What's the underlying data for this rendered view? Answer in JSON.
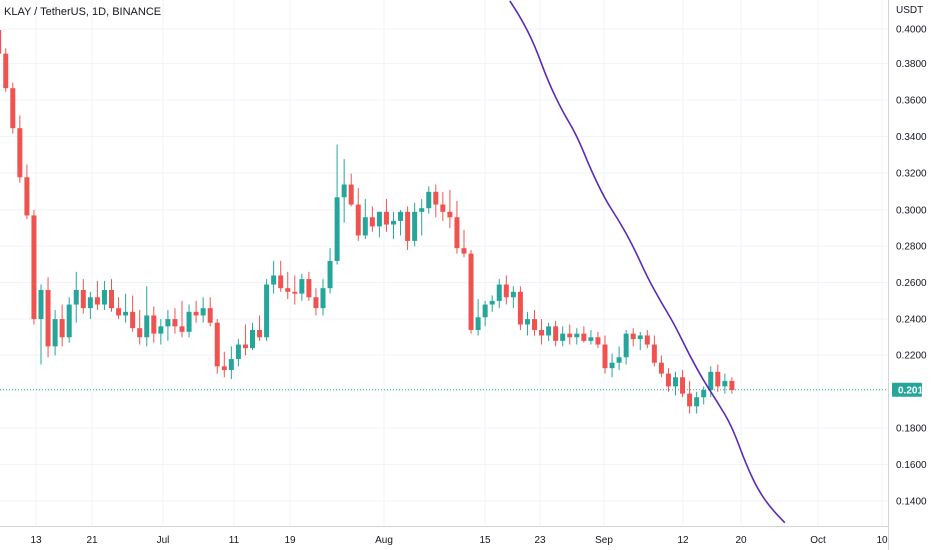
{
  "chart_data": {
    "type": "candlestick",
    "title": "KLAY / TetherUS, 1D, BINANCE",
    "y_unit": "USDT",
    "y_ticks": [
      "0.4000",
      "0.3800",
      "0.3600",
      "0.3400",
      "0.3200",
      "0.3000",
      "0.2800",
      "0.2600",
      "0.2400",
      "0.2200",
      "0.1800",
      "0.1600",
      "0.1400"
    ],
    "y_range": [
      0.128,
      0.415
    ],
    "x_ticks": [
      "13",
      "21",
      "Jul",
      "11",
      "19",
      "Aug",
      "15",
      "23",
      "Sep",
      "12",
      "20",
      "Oct",
      "10"
    ],
    "x_range_days": [
      0,
      117
    ],
    "first_day_index": 0,
    "current_price": "0.2011",
    "candles": [
      [
        0.399,
        0.403,
        0.384,
        0.386
      ],
      [
        0.386,
        0.389,
        0.365,
        0.367
      ],
      [
        0.367,
        0.37,
        0.342,
        0.345
      ],
      [
        0.345,
        0.352,
        0.315,
        0.318
      ],
      [
        0.318,
        0.325,
        0.295,
        0.297
      ],
      [
        0.297,
        0.3,
        0.237,
        0.24
      ],
      [
        0.24,
        0.259,
        0.215,
        0.256
      ],
      [
        0.256,
        0.263,
        0.219,
        0.225
      ],
      [
        0.225,
        0.245,
        0.22,
        0.24
      ],
      [
        0.24,
        0.248,
        0.225,
        0.23
      ],
      [
        0.23,
        0.252,
        0.227,
        0.248
      ],
      [
        0.248,
        0.266,
        0.238,
        0.256
      ],
      [
        0.256,
        0.262,
        0.243,
        0.246
      ],
      [
        0.246,
        0.255,
        0.24,
        0.252
      ],
      [
        0.252,
        0.261,
        0.245,
        0.248
      ],
      [
        0.248,
        0.261,
        0.245,
        0.256
      ],
      [
        0.256,
        0.262,
        0.244,
        0.246
      ],
      [
        0.246,
        0.252,
        0.24,
        0.242
      ],
      [
        0.242,
        0.254,
        0.238,
        0.244
      ],
      [
        0.244,
        0.253,
        0.233,
        0.235
      ],
      [
        0.235,
        0.245,
        0.226,
        0.23
      ],
      [
        0.23,
        0.258,
        0.225,
        0.242
      ],
      [
        0.242,
        0.247,
        0.227,
        0.232
      ],
      [
        0.232,
        0.24,
        0.226,
        0.236
      ],
      [
        0.236,
        0.245,
        0.228,
        0.24
      ],
      [
        0.24,
        0.246,
        0.232,
        0.236
      ],
      [
        0.236,
        0.25,
        0.23,
        0.233
      ],
      [
        0.233,
        0.248,
        0.23,
        0.244
      ],
      [
        0.244,
        0.25,
        0.238,
        0.242
      ],
      [
        0.242,
        0.252,
        0.238,
        0.246
      ],
      [
        0.246,
        0.252,
        0.236,
        0.238
      ],
      [
        0.238,
        0.24,
        0.21,
        0.214
      ],
      [
        0.214,
        0.222,
        0.208,
        0.212
      ],
      [
        0.212,
        0.225,
        0.207,
        0.218
      ],
      [
        0.218,
        0.229,
        0.214,
        0.226
      ],
      [
        0.226,
        0.237,
        0.22,
        0.224
      ],
      [
        0.224,
        0.238,
        0.223,
        0.234
      ],
      [
        0.234,
        0.242,
        0.228,
        0.23
      ],
      [
        0.23,
        0.262,
        0.228,
        0.259
      ],
      [
        0.259,
        0.272,
        0.254,
        0.264
      ],
      [
        0.264,
        0.272,
        0.255,
        0.257
      ],
      [
        0.257,
        0.266,
        0.251,
        0.255
      ],
      [
        0.255,
        0.264,
        0.248,
        0.254
      ],
      [
        0.254,
        0.265,
        0.25,
        0.262
      ],
      [
        0.262,
        0.266,
        0.25,
        0.252
      ],
      [
        0.252,
        0.257,
        0.242,
        0.246
      ],
      [
        0.246,
        0.262,
        0.242,
        0.257
      ],
      [
        0.257,
        0.279,
        0.254,
        0.272
      ],
      [
        0.272,
        0.336,
        0.27,
        0.307
      ],
      [
        0.307,
        0.328,
        0.293,
        0.314
      ],
      [
        0.314,
        0.32,
        0.302,
        0.303
      ],
      [
        0.303,
        0.312,
        0.283,
        0.286
      ],
      [
        0.286,
        0.306,
        0.284,
        0.296
      ],
      [
        0.296,
        0.302,
        0.288,
        0.291
      ],
      [
        0.291,
        0.299,
        0.285,
        0.299
      ],
      [
        0.299,
        0.306,
        0.288,
        0.292
      ],
      [
        0.292,
        0.299,
        0.284,
        0.294
      ],
      [
        0.294,
        0.3,
        0.286,
        0.299
      ],
      [
        0.299,
        0.302,
        0.278,
        0.283
      ],
      [
        0.283,
        0.304,
        0.28,
        0.299
      ],
      [
        0.299,
        0.306,
        0.286,
        0.301
      ],
      [
        0.301,
        0.313,
        0.298,
        0.31
      ],
      [
        0.31,
        0.314,
        0.296,
        0.303
      ],
      [
        0.303,
        0.31,
        0.294,
        0.299
      ],
      [
        0.299,
        0.311,
        0.29,
        0.296
      ],
      [
        0.296,
        0.305,
        0.276,
        0.279
      ],
      [
        0.279,
        0.289,
        0.274,
        0.276
      ],
      [
        0.276,
        0.278,
        0.232,
        0.234
      ],
      [
        0.234,
        0.251,
        0.231,
        0.241
      ],
      [
        0.241,
        0.25,
        0.236,
        0.248
      ],
      [
        0.248,
        0.253,
        0.244,
        0.25
      ],
      [
        0.25,
        0.262,
        0.246,
        0.259
      ],
      [
        0.259,
        0.264,
        0.248,
        0.252
      ],
      [
        0.252,
        0.258,
        0.246,
        0.255
      ],
      [
        0.255,
        0.258,
        0.234,
        0.237
      ],
      [
        0.237,
        0.244,
        0.231,
        0.24
      ],
      [
        0.24,
        0.245,
        0.231,
        0.234
      ],
      [
        0.234,
        0.24,
        0.226,
        0.231
      ],
      [
        0.231,
        0.238,
        0.228,
        0.236
      ],
      [
        0.236,
        0.239,
        0.225,
        0.228
      ],
      [
        0.228,
        0.236,
        0.225,
        0.232
      ],
      [
        0.232,
        0.237,
        0.226,
        0.23
      ],
      [
        0.23,
        0.235,
        0.226,
        0.232
      ],
      [
        0.232,
        0.236,
        0.227,
        0.228
      ],
      [
        0.228,
        0.234,
        0.226,
        0.23
      ],
      [
        0.23,
        0.233,
        0.224,
        0.226
      ],
      [
        0.226,
        0.231,
        0.21,
        0.213
      ],
      [
        0.213,
        0.221,
        0.208,
        0.216
      ],
      [
        0.216,
        0.225,
        0.212,
        0.219
      ],
      [
        0.219,
        0.234,
        0.215,
        0.232
      ],
      [
        0.232,
        0.235,
        0.225,
        0.229
      ],
      [
        0.229,
        0.233,
        0.223,
        0.231
      ],
      [
        0.231,
        0.234,
        0.224,
        0.226
      ],
      [
        0.226,
        0.231,
        0.214,
        0.216
      ],
      [
        0.216,
        0.22,
        0.208,
        0.21
      ],
      [
        0.21,
        0.213,
        0.2,
        0.203
      ],
      [
        0.203,
        0.211,
        0.198,
        0.208
      ],
      [
        0.208,
        0.212,
        0.197,
        0.199
      ],
      [
        0.199,
        0.206,
        0.188,
        0.192
      ],
      [
        0.192,
        0.2,
        0.188,
        0.197
      ],
      [
        0.197,
        0.203,
        0.193,
        0.201
      ],
      [
        0.201,
        0.214,
        0.197,
        0.211
      ],
      [
        0.211,
        0.215,
        0.2,
        0.203
      ],
      [
        0.203,
        0.21,
        0.199,
        0.206
      ],
      [
        0.206,
        0.208,
        0.199,
        0.201
      ]
    ],
    "indicator": {
      "color": "#5b2bb5",
      "points": [
        [
          72.5,
          0.415
        ],
        [
          74,
          0.406
        ],
        [
          76,
          0.391
        ],
        [
          78,
          0.37
        ],
        [
          80,
          0.354
        ],
        [
          82,
          0.341
        ],
        [
          84,
          0.322
        ],
        [
          86,
          0.306
        ],
        [
          88,
          0.294
        ],
        [
          90,
          0.28
        ],
        [
          92,
          0.263
        ],
        [
          94,
          0.249
        ],
        [
          96,
          0.236
        ],
        [
          98,
          0.22
        ],
        [
          100,
          0.206
        ],
        [
          102,
          0.194
        ],
        [
          104,
          0.181
        ],
        [
          106,
          0.16
        ],
        [
          108,
          0.144
        ],
        [
          110,
          0.134
        ],
        [
          111.5,
          0.128
        ]
      ]
    },
    "colors": {
      "up": "#26a69a",
      "down": "#ef5350",
      "price_line": "#26a69a"
    }
  }
}
